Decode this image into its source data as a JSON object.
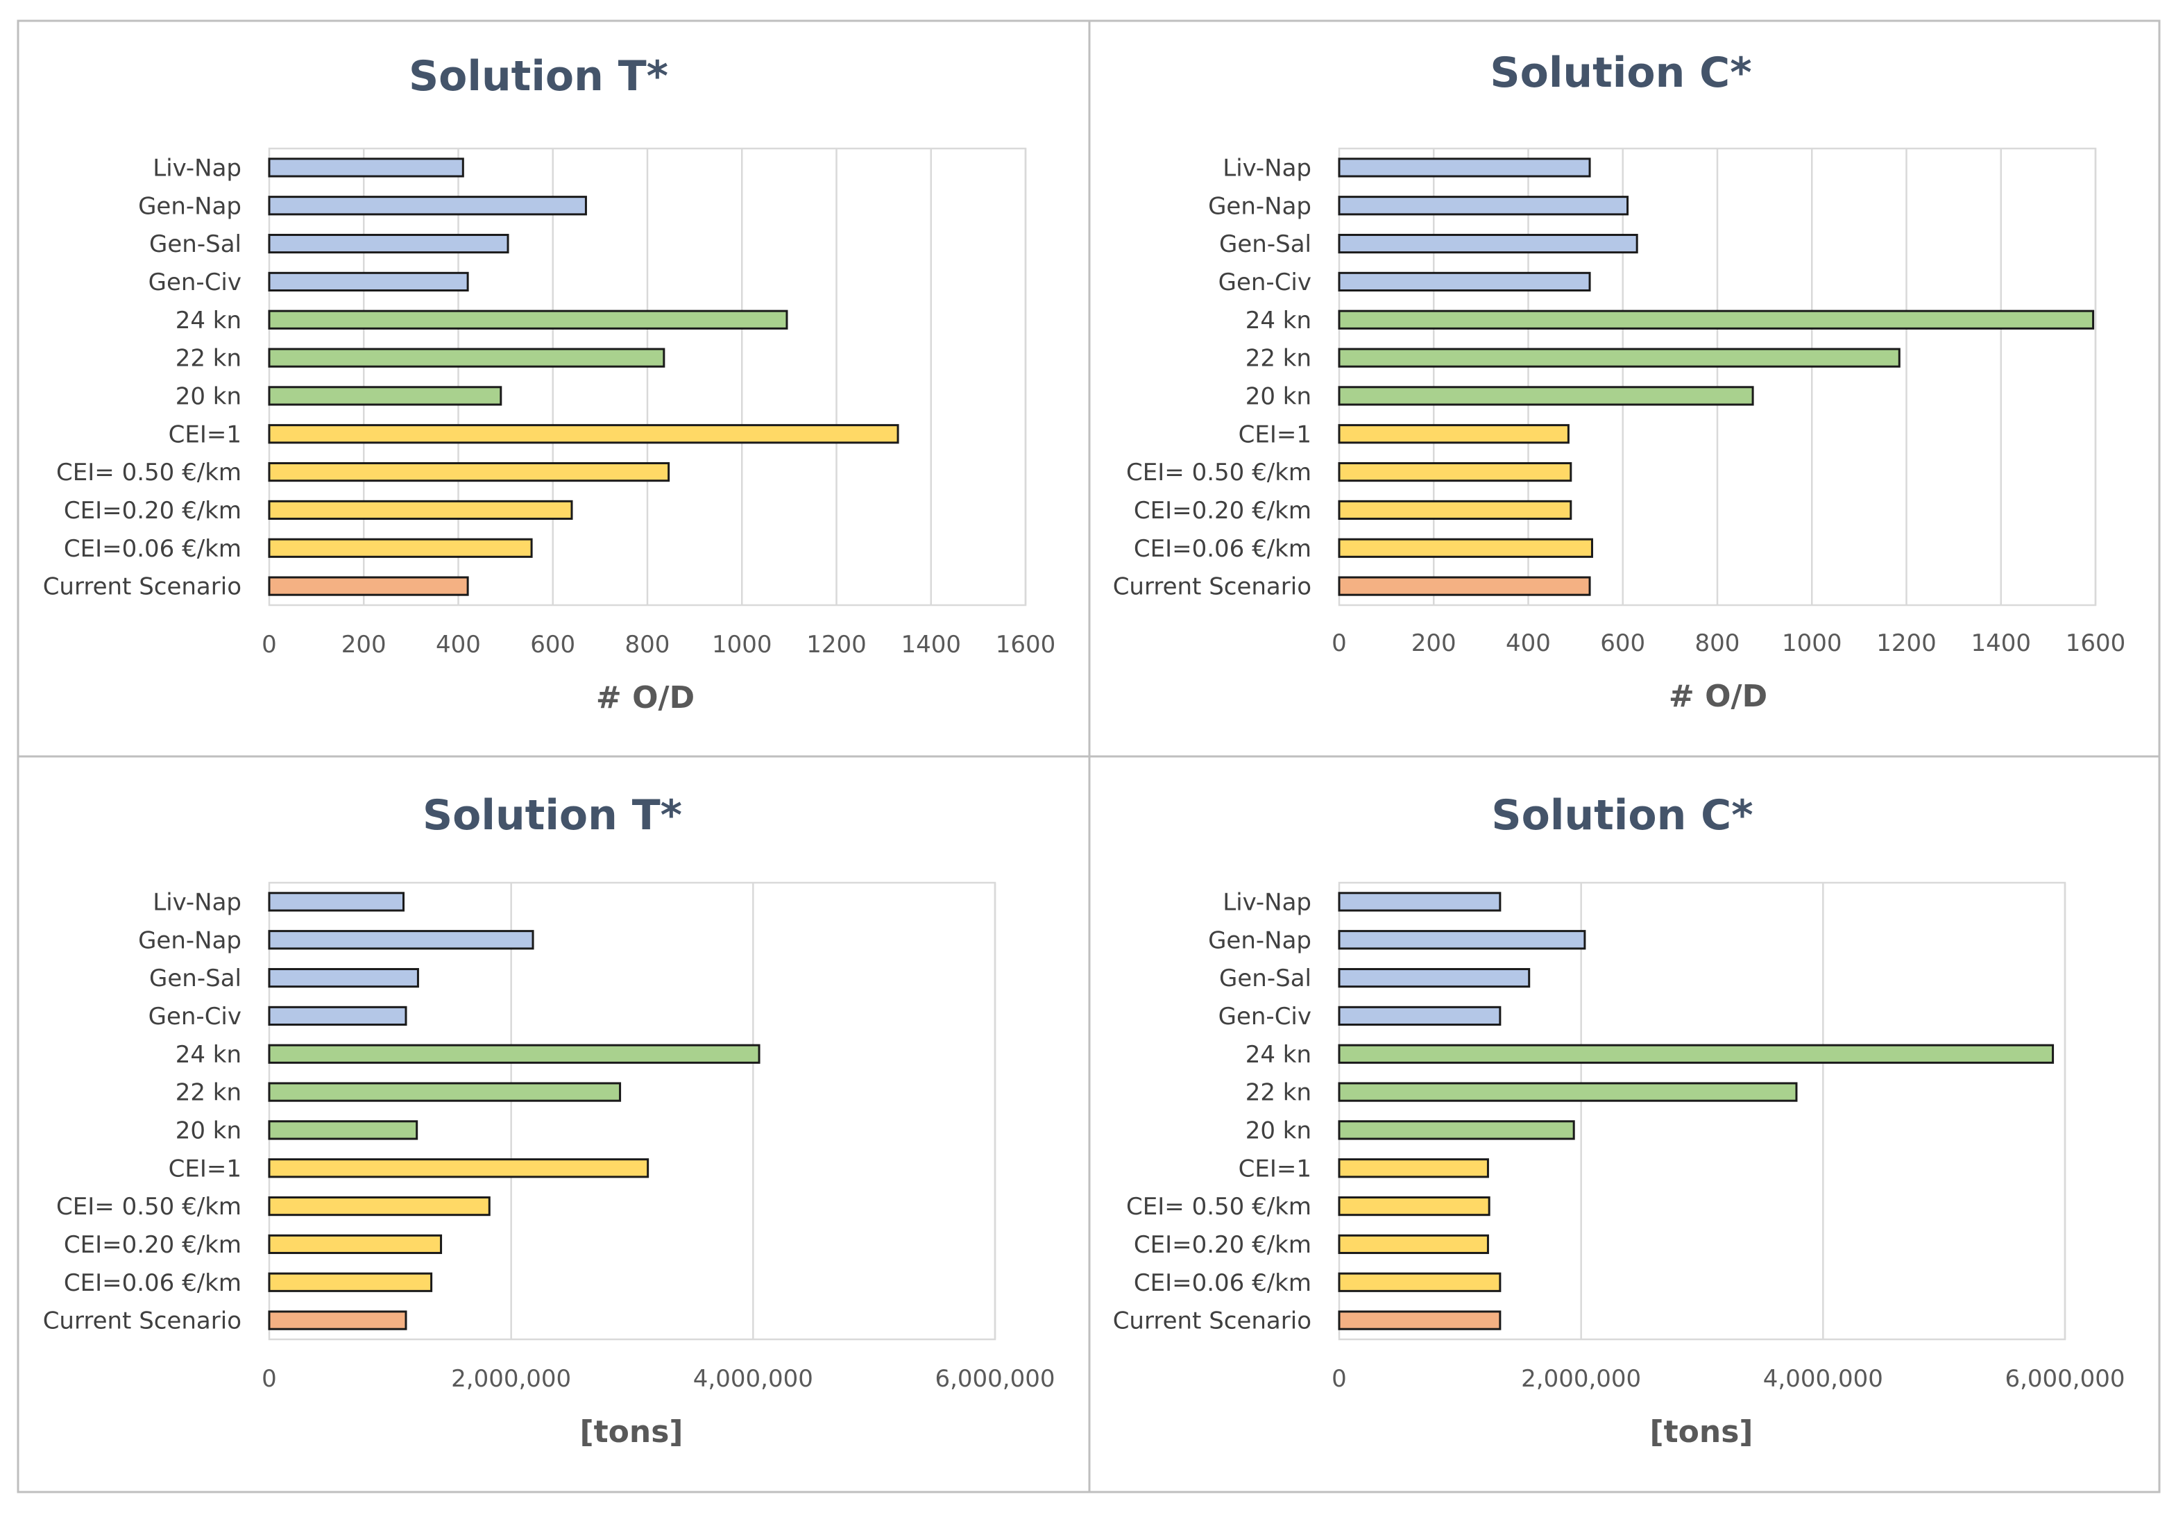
{
  "colors": {
    "blue": "#b4c7e7",
    "green": "#a9d18e",
    "yellow": "#ffd966",
    "orange": "#f4b183",
    "title": "#44546a"
  },
  "chart_data": [
    {
      "type": "bar",
      "orientation": "horizontal",
      "title": "Solution T*",
      "xlabel": "# O/D",
      "ylabel": "",
      "xlim": [
        0,
        1600
      ],
      "ticks": [
        0,
        200,
        400,
        600,
        800,
        1000,
        1200,
        1400,
        1600
      ],
      "tick_labels": [
        "0",
        "200",
        "400",
        "600",
        "800",
        "1000",
        "1200",
        "1400",
        "1600"
      ],
      "grid": true,
      "categories": [
        "Liv-Nap",
        "Gen-Nap",
        "Gen-Sal",
        "Gen-Civ",
        "24 kn",
        "22 kn",
        "20 kn",
        "CEI=1",
        "CEI= 0.50 €/km",
        "CEI=0.20 €/km",
        "CEI=0.06 €/km",
        "Current Scenario"
      ],
      "bar_colors": [
        "blue",
        "blue",
        "blue",
        "blue",
        "green",
        "green",
        "green",
        "yellow",
        "yellow",
        "yellow",
        "yellow",
        "orange"
      ],
      "values": [
        410,
        670,
        505,
        420,
        1095,
        835,
        490,
        1330,
        845,
        640,
        555,
        420
      ]
    },
    {
      "type": "bar",
      "orientation": "horizontal",
      "title": "Solution C*",
      "xlabel": "# O/D",
      "ylabel": "",
      "xlim": [
        0,
        1600
      ],
      "ticks": [
        0,
        200,
        400,
        600,
        800,
        1000,
        1200,
        1400,
        1600
      ],
      "tick_labels": [
        "0",
        "200",
        "400",
        "600",
        "800",
        "1000",
        "1200",
        "1400",
        "1600"
      ],
      "grid": true,
      "categories": [
        "Liv-Nap",
        "Gen-Nap",
        "Gen-Sal",
        "Gen-Civ",
        "24 kn",
        "22 kn",
        "20 kn",
        "CEI=1",
        "CEI= 0.50 €/km",
        "CEI=0.20 €/km",
        "CEI=0.06 €/km",
        "Current Scenario"
      ],
      "bar_colors": [
        "blue",
        "blue",
        "blue",
        "blue",
        "green",
        "green",
        "green",
        "yellow",
        "yellow",
        "yellow",
        "yellow",
        "orange"
      ],
      "values": [
        530,
        610,
        630,
        530,
        1595,
        1185,
        875,
        485,
        490,
        490,
        535,
        530
      ]
    },
    {
      "type": "bar",
      "orientation": "horizontal",
      "title": "Solution T*",
      "xlabel": "[tons]",
      "ylabel": "",
      "xlim": [
        0,
        6000000
      ],
      "ticks": [
        0,
        2000000,
        4000000,
        6000000
      ],
      "tick_labels": [
        "0",
        "2,000,000",
        "4,000,000",
        "6,000,000"
      ],
      "grid": true,
      "categories": [
        "Liv-Nap",
        "Gen-Nap",
        "Gen-Sal",
        "Gen-Civ",
        "24 kn",
        "22 kn",
        "20 kn",
        "CEI=1",
        "CEI= 0.50 €/km",
        "CEI=0.20 €/km",
        "CEI=0.06 €/km",
        "Current Scenario"
      ],
      "bar_colors": [
        "blue",
        "blue",
        "blue",
        "blue",
        "green",
        "green",
        "green",
        "yellow",
        "yellow",
        "yellow",
        "yellow",
        "orange"
      ],
      "values": [
        1110000,
        2180000,
        1230000,
        1130000,
        4050000,
        2900000,
        1220000,
        3130000,
        1820000,
        1420000,
        1340000,
        1130000
      ]
    },
    {
      "type": "bar",
      "orientation": "horizontal",
      "title": "Solution C*",
      "xlabel": "[tons]",
      "ylabel": "",
      "xlim": [
        0,
        6000000
      ],
      "ticks": [
        0,
        2000000,
        4000000,
        6000000
      ],
      "tick_labels": [
        "0",
        "2,000,000",
        "4,000,000",
        "6,000,000"
      ],
      "grid": true,
      "categories": [
        "Liv-Nap",
        "Gen-Nap",
        "Gen-Sal",
        "Gen-Civ",
        "24 kn",
        "22 kn",
        "20 kn",
        "CEI=1",
        "CEI= 0.50 €/km",
        "CEI=0.20 €/km",
        "CEI=0.06 €/km",
        "Current Scenario"
      ],
      "bar_colors": [
        "blue",
        "blue",
        "blue",
        "blue",
        "green",
        "green",
        "green",
        "yellow",
        "yellow",
        "yellow",
        "yellow",
        "orange"
      ],
      "values": [
        1330000,
        2030000,
        1570000,
        1330000,
        5900000,
        3780000,
        1940000,
        1230000,
        1240000,
        1230000,
        1330000,
        1330000
      ]
    }
  ]
}
